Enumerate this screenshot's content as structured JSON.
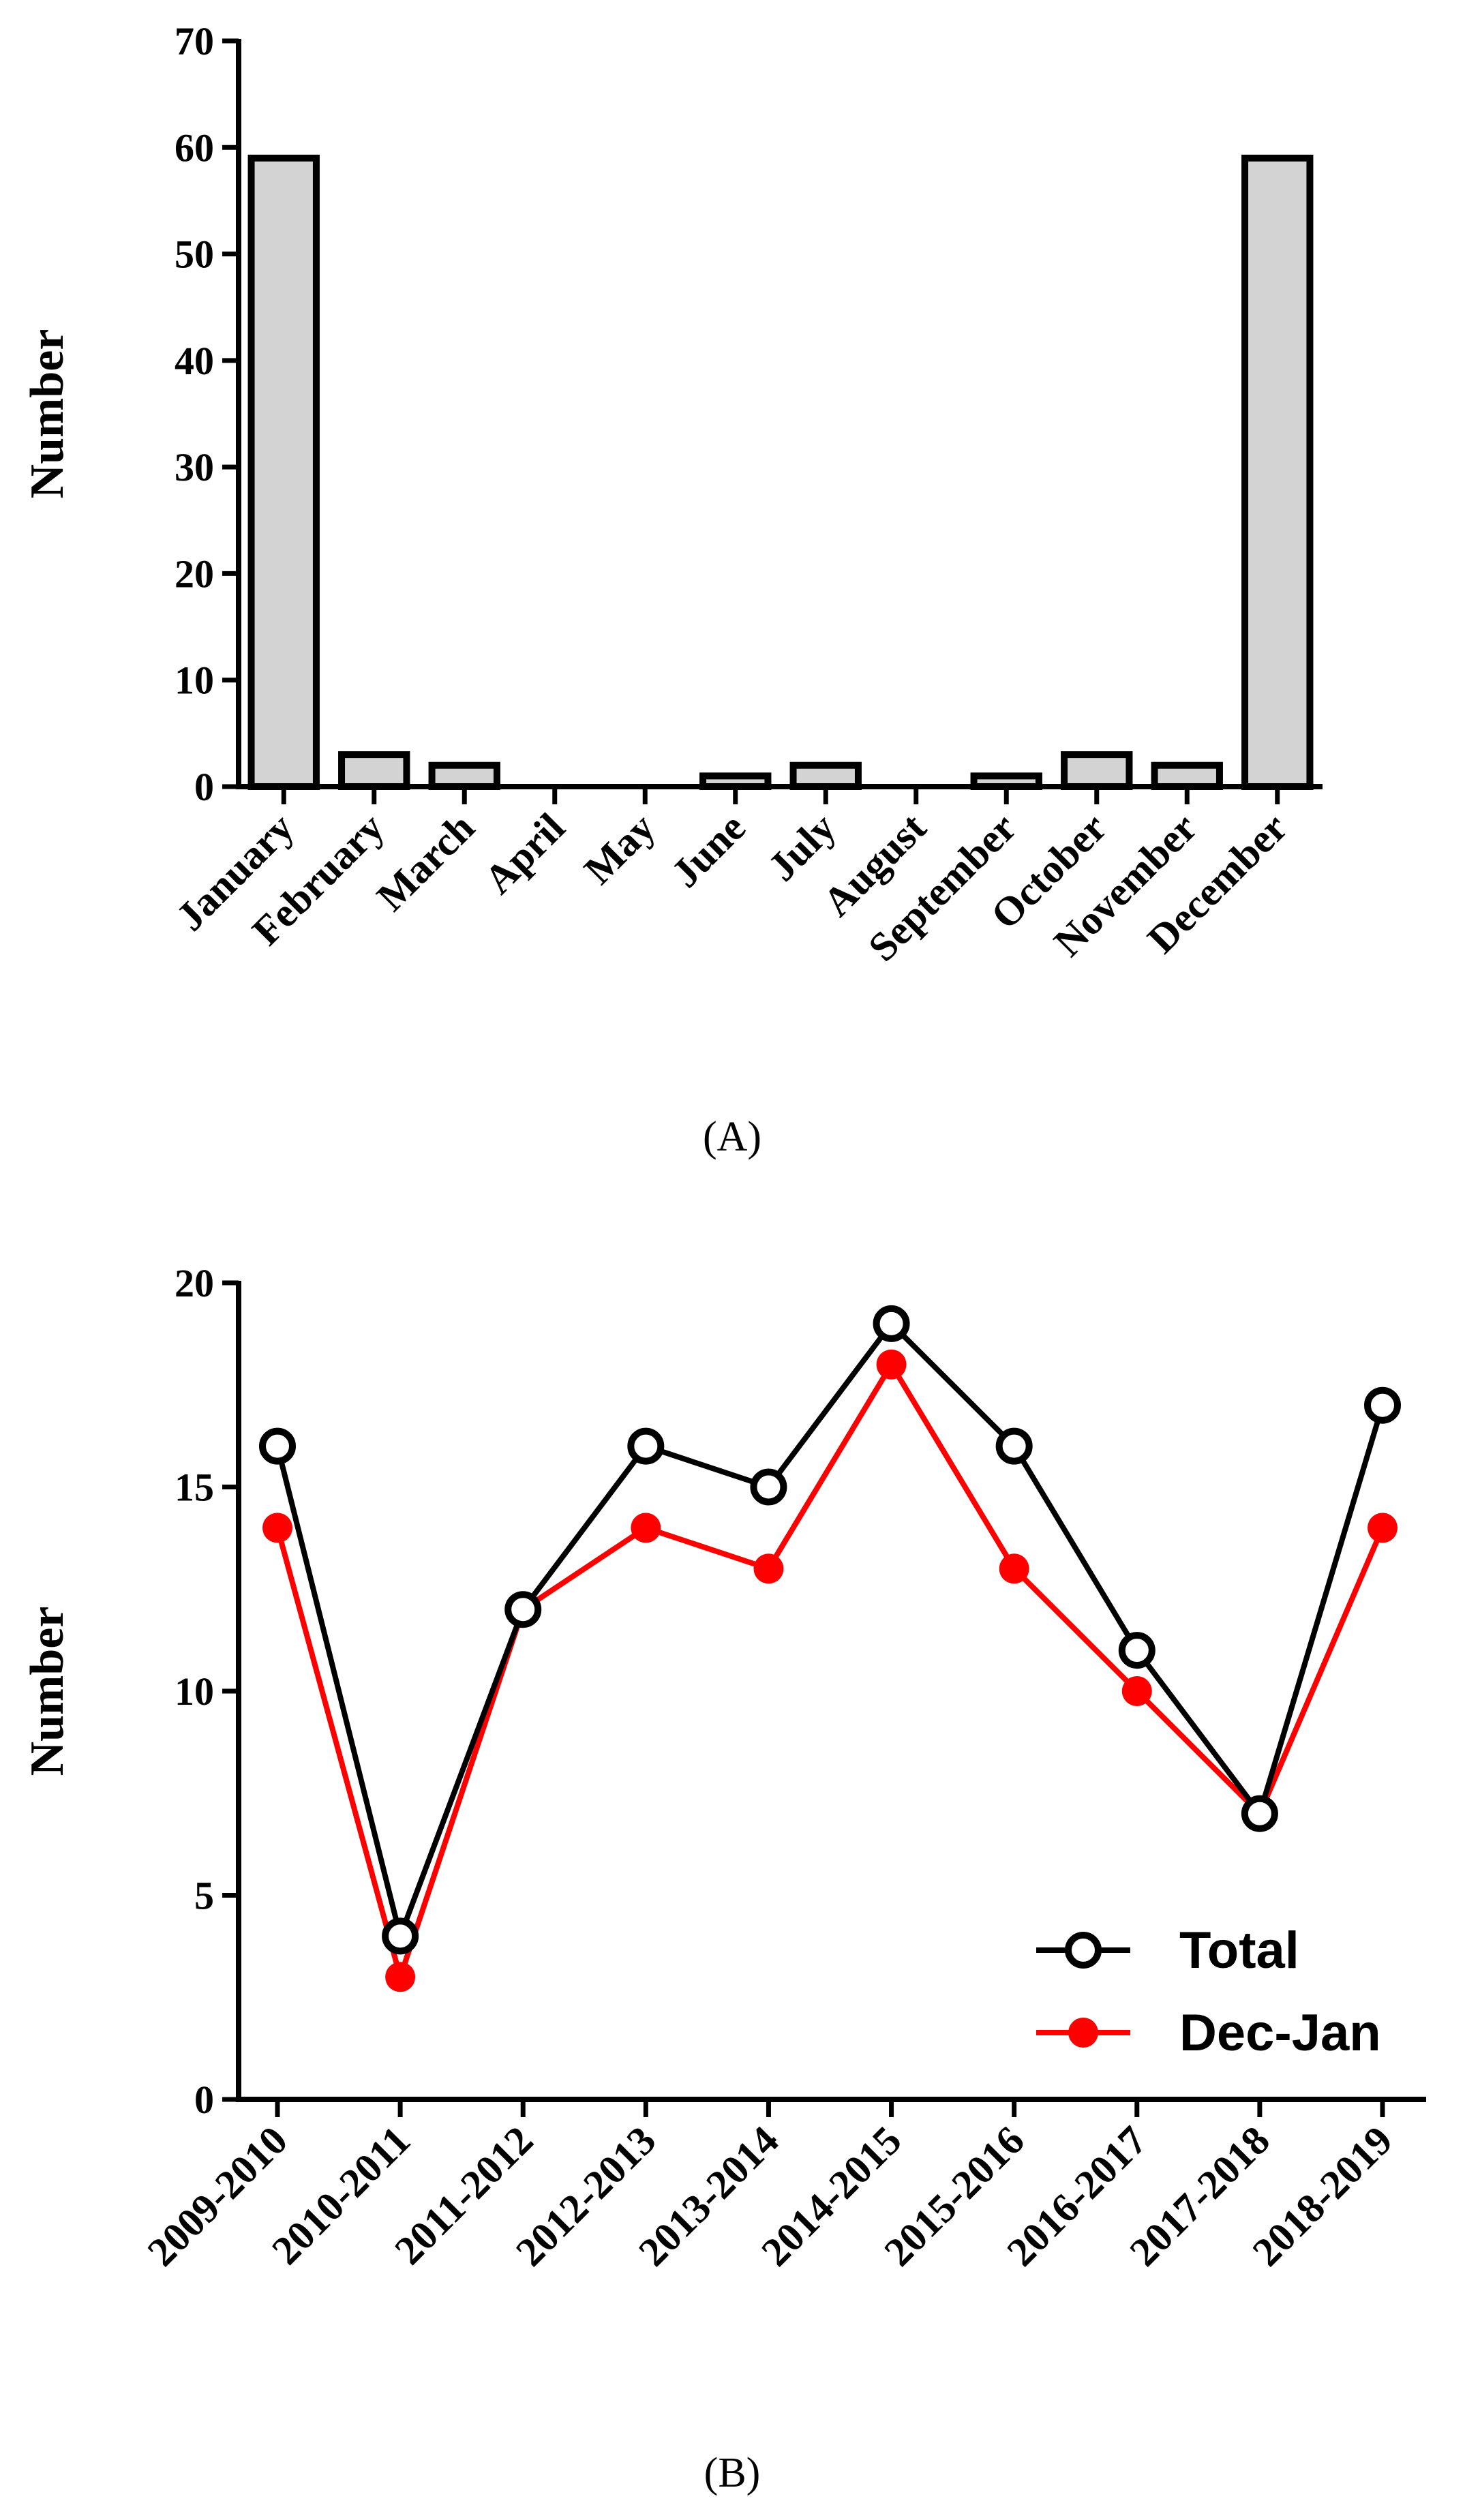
{
  "chart_data": [
    {
      "type": "bar",
      "panel_label": "(A)",
      "categories": [
        "January",
        "February",
        "March",
        "April",
        "May",
        "June",
        "July",
        "August",
        "September",
        "October",
        "November",
        "December"
      ],
      "values": [
        59,
        3,
        2,
        0,
        0,
        1,
        2,
        0,
        1,
        3,
        2,
        59
      ],
      "ylabel": "Number",
      "ylim": [
        0,
        70
      ],
      "yticks": [
        0,
        10,
        20,
        30,
        40,
        50,
        60,
        70
      ],
      "bar_fill": "#d3d3d3",
      "bar_stroke": "#000000"
    },
    {
      "type": "line",
      "panel_label": "(B)",
      "categories": [
        "2009-2010",
        "2010-2011",
        "2011-2012",
        "2012-2013",
        "2013-2014",
        "2014-2015",
        "2015-2016",
        "2016-2017",
        "2017-2018",
        "2018-2019"
      ],
      "series": [
        {
          "name": "Total",
          "values": [
            16,
            4,
            12,
            16,
            15,
            19,
            16,
            11,
            7,
            17
          ],
          "color": "#000000",
          "marker": "open-circle"
        },
        {
          "name": "Dec-Jan",
          "values": [
            14,
            3,
            12,
            14,
            13,
            18,
            13,
            10,
            7,
            14
          ],
          "color": "#ff0000",
          "marker": "filled-circle"
        }
      ],
      "ylabel": "Number",
      "ylim": [
        0,
        20
      ],
      "yticks": [
        0,
        5,
        10,
        15,
        20
      ],
      "legend": "bottom-right"
    }
  ]
}
